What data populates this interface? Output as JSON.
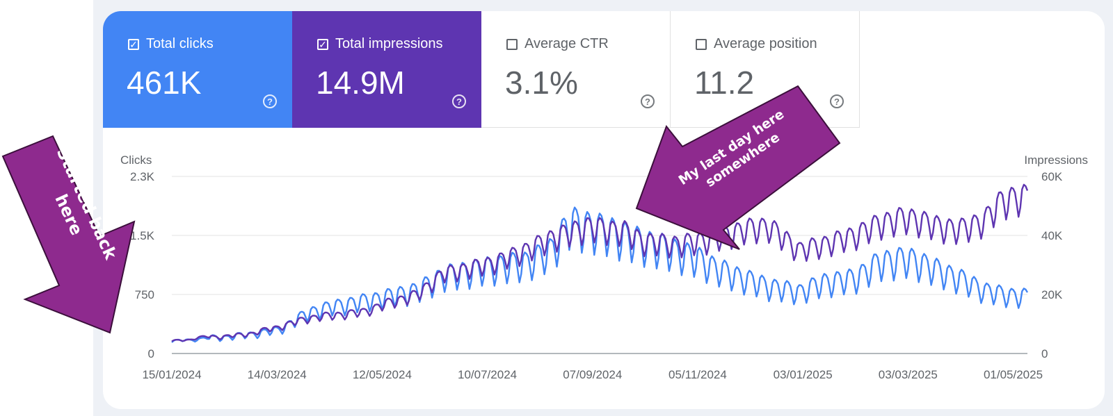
{
  "metrics": [
    {
      "label": "Total clicks",
      "value": "461K",
      "checked": true
    },
    {
      "label": "Total impressions",
      "value": "14.9M",
      "checked": true
    },
    {
      "label": "Average CTR",
      "value": "3.1%",
      "checked": false
    },
    {
      "label": "Average position",
      "value": "11.2",
      "checked": false
    }
  ],
  "colors": {
    "clicks": "#4285f4",
    "impressions": "#5e35b1",
    "callout": "#8e2a8e"
  },
  "chart_data": {
    "type": "line",
    "x_tick_labels": [
      "15/01/2024",
      "14/03/2024",
      "12/05/2024",
      "10/07/2024",
      "07/09/2024",
      "05/11/2024",
      "03/01/2025",
      "03/03/2025",
      "01/05/2025"
    ],
    "x_range": [
      "15/01/2024",
      "09/05/2025"
    ],
    "left_axis": {
      "label": "Clicks",
      "ticks": [
        "0",
        "750",
        "1.5K",
        "2.3K"
      ],
      "range": [
        0,
        2250
      ]
    },
    "right_axis": {
      "label": "Impressions",
      "ticks": [
        "0",
        "20K",
        "40K",
        "60K"
      ],
      "range": [
        0,
        60000
      ]
    },
    "grid": true,
    "series": [
      {
        "name": "Clicks",
        "axis": "left",
        "color": "#4285f4",
        "anchor_dates": [
          "15/01/2024",
          "01/02/2024",
          "20/02/2024",
          "01/03/2024",
          "15/03/2024",
          "01/04/2024",
          "15/04/2024",
          "01/05/2024",
          "15/05/2024",
          "01/06/2024",
          "15/06/2024",
          "01/07/2024",
          "15/07/2024",
          "01/08/2024",
          "15/08/2024",
          "25/08/2024",
          "05/09/2024",
          "15/09/2024",
          "25/09/2024",
          "05/10/2024",
          "15/10/2024",
          "25/10/2024",
          "05/11/2024",
          "15/11/2024",
          "01/12/2024",
          "15/12/2024",
          "01/01/2025",
          "15/01/2025",
          "01/02/2025",
          "15/02/2025",
          "01/03/2025",
          "10/03/2025",
          "20/03/2025",
          "01/04/2025",
          "15/04/2025",
          "25/04/2025",
          "09/05/2025"
        ],
        "values": [
          150,
          190,
          220,
          250,
          300,
          520,
          600,
          660,
          720,
          800,
          980,
          1050,
          1100,
          1150,
          1300,
          1650,
          1600,
          1550,
          1480,
          1400,
          1350,
          1280,
          1200,
          1080,
          950,
          850,
          780,
          900,
          950,
          1150,
          1200,
          1150,
          1050,
          950,
          800,
          750,
          720
        ]
      },
      {
        "name": "Impressions",
        "axis": "right",
        "color": "#5e35b1",
        "anchor_dates": [
          "15/01/2024",
          "01/02/2024",
          "20/02/2024",
          "01/03/2024",
          "15/03/2024",
          "01/04/2024",
          "15/04/2024",
          "01/05/2024",
          "15/05/2024",
          "01/06/2024",
          "15/06/2024",
          "01/07/2024",
          "15/07/2024",
          "01/08/2024",
          "15/08/2024",
          "25/08/2024",
          "05/09/2024",
          "15/09/2024",
          "25/09/2024",
          "05/10/2024",
          "15/10/2024",
          "25/10/2024",
          "05/11/2024",
          "15/11/2024",
          "01/12/2024",
          "15/12/2024",
          "01/01/2025",
          "15/01/2025",
          "01/02/2025",
          "15/02/2025",
          "01/03/2025",
          "10/03/2025",
          "20/03/2025",
          "01/04/2025",
          "15/04/2025",
          "25/04/2025",
          "09/05/2025"
        ],
        "values": [
          4000,
          5500,
          6000,
          7000,
          9000,
          12000,
          13000,
          14000,
          17000,
          20000,
          27000,
          29000,
          31000,
          35000,
          39000,
          41000,
          43000,
          42000,
          41500,
          38000,
          37500,
          37000,
          38000,
          39000,
          42000,
          43000,
          35000,
          37000,
          40000,
          44000,
          46000,
          45000,
          43000,
          42000,
          45000,
          52000,
          53000
        ]
      }
    ],
    "annotations": [
      {
        "text_lines": [
          "Started back",
          "here"
        ]
      },
      {
        "text_lines": [
          "My last day here",
          "somewhere"
        ]
      }
    ]
  }
}
